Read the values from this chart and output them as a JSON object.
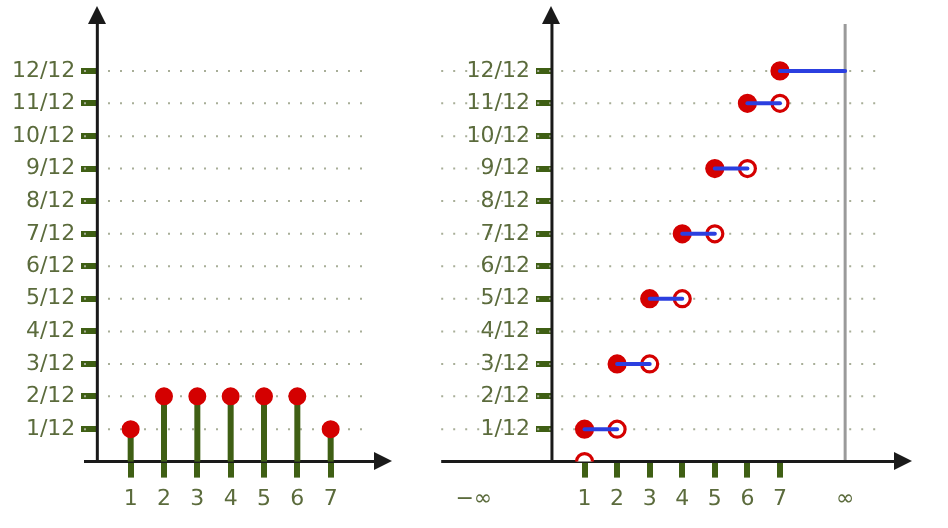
{
  "chart_data": [
    {
      "type": "lollipop",
      "x": [
        1,
        2,
        3,
        4,
        5,
        6,
        7
      ],
      "values": [
        0.083,
        0.167,
        0.167,
        0.167,
        0.167,
        0.167,
        0.083
      ],
      "color": "#d40000",
      "marker": "circle",
      "xlim": [
        -0.4,
        8.3
      ],
      "xticks": [
        1,
        2,
        3,
        4,
        5,
        6,
        7
      ],
      "ylim": [
        0,
        1.12
      ],
      "yticks": [
        {
          "value": 0.083,
          "label": "1/12"
        },
        {
          "value": 0.167,
          "label": "2/12"
        },
        {
          "value": 0.25,
          "label": "3/12"
        },
        {
          "value": 0.333,
          "label": "4/12"
        },
        {
          "value": 0.417,
          "label": "5/12"
        },
        {
          "value": 0.5,
          "label": "6/12"
        },
        {
          "value": 0.583,
          "label": "7/12"
        },
        {
          "value": 0.667,
          "label": "8/12"
        },
        {
          "value": 0.75,
          "label": "9/12"
        },
        {
          "value": 0.833,
          "label": "10/12"
        },
        {
          "value": 0.917,
          "label": "11/12"
        },
        {
          "value": 1,
          "label": "12/12"
        }
      ],
      "grid": "y"
    },
    {
      "type": "line",
      "series": [
        {
          "color": "#2b3fe0",
          "x": [
            1,
            2
          ],
          "values": [
            0.083,
            0.083
          ]
        },
        {
          "color": "#2b3fe0",
          "x": [
            2,
            3
          ],
          "values": [
            0.25,
            0.25
          ]
        },
        {
          "color": "#2b3fe0",
          "x": [
            3,
            4
          ],
          "values": [
            0.417,
            0.417
          ]
        },
        {
          "color": "#2b3fe0",
          "x": [
            4,
            5
          ],
          "values": [
            0.583,
            0.583
          ]
        },
        {
          "color": "#2b3fe0",
          "x": [
            5,
            6
          ],
          "values": [
            0.75,
            0.75
          ]
        },
        {
          "color": "#2b3fe0",
          "x": [
            6,
            7
          ],
          "values": [
            0.917,
            0.917
          ]
        },
        {
          "color": "#2b3fe0",
          "x": [
            7,
            9
          ],
          "values": [
            1,
            1
          ]
        },
        {
          "type": "scatter",
          "color": "#d40000",
          "marker": "circle",
          "x": [
            1,
            2,
            3,
            4,
            5,
            6,
            7
          ],
          "values": [
            0.083,
            0.25,
            0.417,
            0.583,
            0.75,
            0.917,
            1
          ]
        },
        {
          "type": "scatter",
          "color": "#d40000",
          "marker": "circle",
          "x": [
            1,
            2,
            3,
            4,
            5,
            6,
            7
          ],
          "values": [
            0,
            0.083,
            0.25,
            0.417,
            0.583,
            0.75,
            0.917
          ]
        }
      ],
      "xlim": [
        -3.4,
        10.5
      ],
      "xticks": [
        {
          "value": -2.4,
          "label": "−∞"
        },
        1,
        2,
        3,
        4,
        5,
        6,
        7,
        {
          "value": 9,
          "label": "∞"
        }
      ],
      "ylim": [
        0,
        1.12
      ],
      "yticks": [
        {
          "value": 0.083,
          "label": "1/12"
        },
        {
          "value": 0.167,
          "label": "2/12"
        },
        {
          "value": 0.25,
          "label": "3/12"
        },
        {
          "value": 0.333,
          "label": "4/12"
        },
        {
          "value": 0.417,
          "label": "5/12"
        },
        {
          "value": 0.5,
          "label": "6/12"
        },
        {
          "value": 0.583,
          "label": "7/12"
        },
        {
          "value": 0.667,
          "label": "8/12"
        },
        {
          "value": 0.75,
          "label": "9/12"
        },
        {
          "value": 0.833,
          "label": "10/12"
        },
        {
          "value": 0.917,
          "label": "11/12"
        },
        {
          "value": 1,
          "label": "12/12"
        }
      ],
      "ref_lines": [
        {
          "axis": "x",
          "value": 9,
          "color": "#9a9a9a"
        }
      ],
      "grid": "y"
    }
  ]
}
